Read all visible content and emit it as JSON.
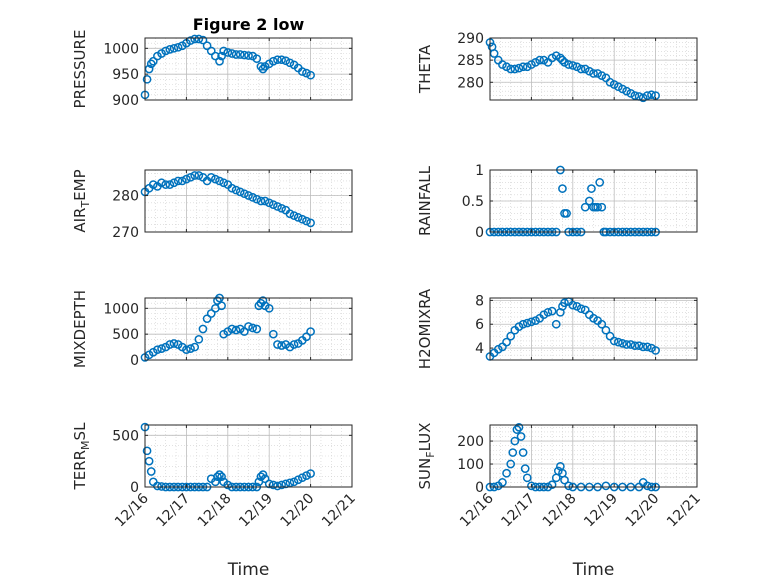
{
  "title": "Figure 2 low",
  "xlabel": "Time",
  "x_ticks": [
    "12/16",
    "12/17",
    "12/18",
    "12/19",
    "12/20",
    "12/21"
  ],
  "marker_color": "#0072BD",
  "chart_data": [
    {
      "type": "scatter",
      "ylabel": "PRESSURE",
      "ylim": [
        900,
        1020
      ],
      "yticks": [
        900,
        950,
        1000
      ],
      "x": [
        0,
        0.05,
        0.1,
        0.15,
        0.2,
        0.3,
        0.4,
        0.5,
        0.6,
        0.7,
        0.8,
        0.9,
        1.0,
        1.1,
        1.2,
        1.3,
        1.4,
        1.5,
        1.6,
        1.7,
        1.8,
        1.85,
        1.9,
        2.0,
        2.1,
        2.2,
        2.3,
        2.4,
        2.5,
        2.6,
        2.7,
        2.8,
        2.85,
        2.9,
        3.0,
        3.1,
        3.2,
        3.3,
        3.4,
        3.5,
        3.6,
        3.7,
        3.8,
        3.9,
        4.0
      ],
      "y": [
        910,
        940,
        960,
        970,
        975,
        985,
        990,
        995,
        998,
        1000,
        1002,
        1005,
        1010,
        1015,
        1018,
        1018,
        1016,
        1005,
        995,
        985,
        975,
        985,
        995,
        992,
        990,
        988,
        988,
        987,
        986,
        985,
        980,
        965,
        960,
        965,
        970,
        975,
        978,
        978,
        976,
        972,
        968,
        962,
        955,
        952,
        948
      ]
    },
    {
      "type": "scatter",
      "ylabel": "THETA",
      "ylim": [
        276,
        290
      ],
      "yticks": [
        280,
        285,
        290
      ],
      "x": [
        0,
        0.05,
        0.1,
        0.2,
        0.3,
        0.4,
        0.5,
        0.6,
        0.7,
        0.8,
        0.9,
        1.0,
        1.1,
        1.2,
        1.3,
        1.4,
        1.5,
        1.6,
        1.7,
        1.75,
        1.8,
        1.9,
        2.0,
        2.1,
        2.2,
        2.3,
        2.4,
        2.5,
        2.6,
        2.7,
        2.8,
        2.9,
        3.0,
        3.1,
        3.2,
        3.3,
        3.4,
        3.5,
        3.6,
        3.7,
        3.8,
        3.9,
        4.0
      ],
      "y": [
        289,
        288,
        286.5,
        285,
        284,
        283.5,
        283,
        283,
        283.2,
        283.5,
        283.5,
        284,
        284.5,
        285,
        285,
        284.5,
        285.5,
        286,
        285.5,
        285,
        284.5,
        284,
        283.8,
        283.5,
        283,
        283,
        282.5,
        282,
        282,
        281.5,
        281,
        280,
        279.5,
        279,
        278.5,
        278,
        277.5,
        277,
        276.8,
        276.5,
        277,
        277.2,
        277
      ]
    },
    {
      "type": "scatter",
      "ylabel": "AIR_TEMP",
      "ylabel_main": "AIR",
      "ylabel_sub": "T",
      "ylabel_rest": "EMP",
      "ylim": [
        270,
        287
      ],
      "yticks": [
        270,
        280
      ],
      "x": [
        0,
        0.1,
        0.2,
        0.3,
        0.4,
        0.5,
        0.6,
        0.7,
        0.8,
        0.9,
        1.0,
        1.1,
        1.2,
        1.3,
        1.4,
        1.5,
        1.6,
        1.7,
        1.8,
        1.9,
        2.0,
        2.1,
        2.2,
        2.3,
        2.4,
        2.5,
        2.6,
        2.7,
        2.8,
        2.9,
        3.0,
        3.1,
        3.2,
        3.3,
        3.4,
        3.5,
        3.6,
        3.7,
        3.8,
        3.9,
        4.0
      ],
      "y": [
        281,
        282,
        283,
        282.5,
        283.5,
        283,
        283,
        283.5,
        284,
        284,
        284.5,
        285,
        285.5,
        285.5,
        285,
        284,
        285,
        284.5,
        284,
        283.5,
        283,
        282,
        281.5,
        281,
        280.5,
        280,
        279.5,
        279,
        278.5,
        278.5,
        278,
        277.5,
        277,
        276.5,
        276,
        275,
        274.5,
        274,
        273.5,
        273,
        272.5
      ]
    },
    {
      "type": "scatter",
      "ylabel": "RAINFALL",
      "ylim": [
        0,
        1
      ],
      "yticks": [
        0,
        0.5,
        1
      ],
      "x": [
        0,
        0.1,
        0.2,
        0.3,
        0.4,
        0.5,
        0.6,
        0.7,
        0.8,
        0.9,
        1.0,
        1.1,
        1.2,
        1.3,
        1.4,
        1.5,
        1.6,
        1.7,
        1.75,
        1.8,
        1.85,
        1.9,
        2.0,
        2.1,
        2.2,
        2.3,
        2.4,
        2.45,
        2.5,
        2.55,
        2.6,
        2.65,
        2.7,
        2.75,
        2.8,
        2.9,
        3.0,
        3.1,
        3.2,
        3.3,
        3.4,
        3.5,
        3.6,
        3.7,
        3.8,
        3.9,
        4.0
      ],
      "y": [
        0,
        0,
        0,
        0,
        0,
        0,
        0,
        0,
        0,
        0,
        0,
        0,
        0,
        0,
        0,
        0,
        0,
        1,
        0.7,
        0.3,
        0.3,
        0,
        0,
        0,
        0,
        0.4,
        0.5,
        0.7,
        0.4,
        0.4,
        0.4,
        0.8,
        0.4,
        0,
        0,
        0,
        0,
        0,
        0,
        0,
        0,
        0,
        0,
        0,
        0,
        0,
        0
      ]
    },
    {
      "type": "scatter",
      "ylabel": "MIXDEPTH",
      "ylim": [
        0,
        1200
      ],
      "yticks": [
        0,
        500,
        1000
      ],
      "x": [
        0,
        0.1,
        0.2,
        0.3,
        0.4,
        0.5,
        0.6,
        0.7,
        0.8,
        0.9,
        1.0,
        1.1,
        1.2,
        1.3,
        1.4,
        1.5,
        1.6,
        1.7,
        1.75,
        1.8,
        1.85,
        1.9,
        2.0,
        2.1,
        2.2,
        2.3,
        2.4,
        2.5,
        2.6,
        2.7,
        2.75,
        2.8,
        2.85,
        2.9,
        3.0,
        3.1,
        3.2,
        3.3,
        3.4,
        3.5,
        3.6,
        3.7,
        3.8,
        3.9,
        4.0
      ],
      "y": [
        50,
        100,
        150,
        200,
        220,
        250,
        300,
        320,
        300,
        250,
        200,
        220,
        250,
        400,
        600,
        800,
        900,
        1000,
        1150,
        1200,
        1050,
        500,
        550,
        600,
        580,
        600,
        550,
        650,
        620,
        600,
        1050,
        1100,
        1150,
        1050,
        1000,
        500,
        300,
        280,
        300,
        250,
        300,
        320,
        380,
        450,
        550
      ]
    },
    {
      "type": "scatter",
      "ylabel": "H2OMIXRA",
      "ylim": [
        3,
        8.2
      ],
      "yticks": [
        4,
        6,
        8
      ],
      "x": [
        0,
        0.1,
        0.2,
        0.3,
        0.4,
        0.5,
        0.6,
        0.7,
        0.8,
        0.9,
        1.0,
        1.1,
        1.2,
        1.3,
        1.4,
        1.5,
        1.6,
        1.7,
        1.75,
        1.8,
        1.9,
        2.0,
        2.1,
        2.2,
        2.3,
        2.4,
        2.5,
        2.6,
        2.7,
        2.8,
        2.9,
        3.0,
        3.1,
        3.2,
        3.3,
        3.4,
        3.5,
        3.6,
        3.7,
        3.8,
        3.9,
        4.0
      ],
      "y": [
        3.3,
        3.6,
        3.9,
        4.1,
        4.5,
        5.0,
        5.5,
        5.8,
        6.0,
        6.1,
        6.2,
        6.3,
        6.5,
        6.8,
        7.0,
        7.1,
        6.0,
        7.0,
        7.5,
        7.8,
        7.9,
        7.6,
        7.5,
        7.3,
        7.2,
        6.8,
        6.5,
        6.3,
        6.0,
        5.5,
        5.0,
        4.6,
        4.5,
        4.4,
        4.3,
        4.3,
        4.2,
        4.2,
        4.1,
        4.1,
        4.0,
        3.8
      ]
    },
    {
      "type": "scatter",
      "ylabel": "TERR_MSL",
      "ylabel_main": "TERR",
      "ylabel_sub": "M",
      "ylabel_rest": "SL",
      "ylim": [
        0,
        600
      ],
      "yticks": [
        0,
        500
      ],
      "x": [
        0,
        0.05,
        0.1,
        0.15,
        0.2,
        0.3,
        0.4,
        0.5,
        0.6,
        0.7,
        0.8,
        0.9,
        1.0,
        1.1,
        1.2,
        1.3,
        1.4,
        1.5,
        1.6,
        1.7,
        1.75,
        1.8,
        1.85,
        1.9,
        2.0,
        2.1,
        2.2,
        2.3,
        2.4,
        2.5,
        2.6,
        2.7,
        2.75,
        2.8,
        2.85,
        2.9,
        3.0,
        3.1,
        3.2,
        3.3,
        3.4,
        3.5,
        3.6,
        3.7,
        3.8,
        3.9,
        4.0
      ],
      "y": [
        580,
        350,
        250,
        150,
        50,
        10,
        5,
        0,
        0,
        0,
        0,
        0,
        0,
        0,
        0,
        0,
        0,
        0,
        80,
        50,
        100,
        120,
        100,
        50,
        20,
        0,
        0,
        0,
        0,
        0,
        0,
        0,
        50,
        100,
        120,
        80,
        30,
        20,
        10,
        20,
        30,
        40,
        50,
        70,
        90,
        110,
        130
      ]
    },
    {
      "type": "scatter",
      "ylabel": "SUN_FLUX",
      "ylabel_main": "SUN",
      "ylabel_sub": "F",
      "ylabel_rest": "LUX",
      "ylim": [
        0,
        270
      ],
      "yticks": [
        0,
        100,
        200
      ],
      "x": [
        0,
        0.1,
        0.2,
        0.3,
        0.4,
        0.5,
        0.55,
        0.6,
        0.65,
        0.7,
        0.75,
        0.8,
        0.85,
        0.9,
        1.0,
        1.1,
        1.2,
        1.3,
        1.4,
        1.5,
        1.6,
        1.65,
        1.7,
        1.75,
        1.8,
        1.9,
        2.0,
        2.2,
        2.4,
        2.6,
        2.8,
        3.0,
        3.2,
        3.4,
        3.6,
        3.7,
        3.8,
        3.9,
        4.0
      ],
      "y": [
        0,
        0,
        5,
        20,
        60,
        100,
        150,
        200,
        250,
        260,
        220,
        150,
        80,
        40,
        5,
        0,
        0,
        0,
        0,
        10,
        40,
        70,
        90,
        60,
        30,
        5,
        0,
        0,
        0,
        0,
        5,
        0,
        0,
        0,
        0,
        20,
        5,
        0,
        0
      ]
    }
  ]
}
